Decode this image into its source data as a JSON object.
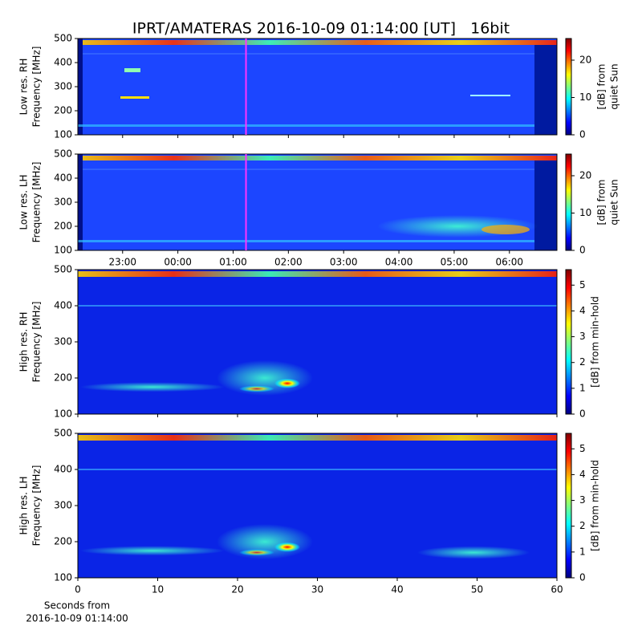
{
  "title": "IPRT/AMATERAS 2016-10-09 01:14:00 [UT]   16bit",
  "chart_data": [
    {
      "type": "heatmap",
      "colormap": "jet",
      "ylabel": [
        "Low res. RH",
        "Frequency [MHz]"
      ],
      "ylim": [
        100,
        500
      ],
      "yticks": [
        100,
        200,
        300,
        400,
        500
      ],
      "xlim": [
        22.19,
        30.86
      ],
      "xticks": [
        {
          "value": 23,
          "label": "23:00"
        },
        {
          "value": 24,
          "label": "00:00"
        },
        {
          "value": 25,
          "label": "01:00"
        },
        {
          "value": 26,
          "label": "02:00"
        },
        {
          "value": 27,
          "label": "03:00"
        },
        {
          "value": 28,
          "label": "04:00"
        },
        {
          "value": 29,
          "label": "05:00"
        },
        {
          "value": 30,
          "label": "06:00"
        }
      ],
      "show_xtick_labels": false,
      "cursor": 25.233,
      "cursor_color": "#ff33ff",
      "clim": [
        0,
        25.8
      ],
      "cticks": [
        0,
        10,
        20
      ],
      "clabel": [
        "[dB] from",
        "quiet Sun"
      ]
    },
    {
      "type": "heatmap",
      "colormap": "jet",
      "ylabel": [
        "Low res. LH",
        "Frequency [MHz]"
      ],
      "ylim": [
        100,
        500
      ],
      "yticks": [
        100,
        200,
        300,
        400,
        500
      ],
      "xlim": [
        22.19,
        30.86
      ],
      "xticks": [
        {
          "value": 23,
          "label": "23:00"
        },
        {
          "value": 24,
          "label": "00:00"
        },
        {
          "value": 25,
          "label": "01:00"
        },
        {
          "value": 26,
          "label": "02:00"
        },
        {
          "value": 27,
          "label": "03:00"
        },
        {
          "value": 28,
          "label": "04:00"
        },
        {
          "value": 29,
          "label": "05:00"
        },
        {
          "value": 30,
          "label": "06:00"
        }
      ],
      "show_xtick_labels": true,
      "cursor": 25.233,
      "cursor_color": "#ff33ff",
      "clim": [
        0,
        25.8
      ],
      "cticks": [
        0,
        10,
        20
      ],
      "clabel": [
        "[dB] from",
        "quiet Sun"
      ]
    },
    {
      "type": "heatmap",
      "colormap": "jet",
      "ylabel": [
        "High res. RH",
        "Frequency [MHz]"
      ],
      "ylim": [
        100,
        500
      ],
      "yticks": [
        100,
        200,
        300,
        400,
        500
      ],
      "xlim": [
        0,
        60
      ],
      "xticks": [
        0,
        10,
        20,
        30,
        40,
        50,
        60
      ],
      "show_xtick_labels": false,
      "clim": [
        0,
        5.6
      ],
      "cticks": [
        0,
        1,
        2,
        3,
        4,
        5
      ],
      "clabel": [
        "[dB] from min-hold"
      ]
    },
    {
      "type": "heatmap",
      "colormap": "jet",
      "ylabel": [
        "High res. LH",
        "Frequency [MHz]"
      ],
      "ylim": [
        100,
        500
      ],
      "yticks": [
        100,
        200,
        300,
        400,
        500
      ],
      "xlim": [
        0,
        60
      ],
      "xticks": [
        0,
        10,
        20,
        30,
        40,
        50,
        60
      ],
      "show_xtick_labels": true,
      "xlabel": [
        "Seconds from",
        "2016-10-09 01:14:00"
      ],
      "clim": [
        0,
        5.6
      ],
      "cticks": [
        0,
        1,
        2,
        3,
        4,
        5
      ],
      "clabel": [
        "[dB] from min-hold"
      ]
    }
  ]
}
